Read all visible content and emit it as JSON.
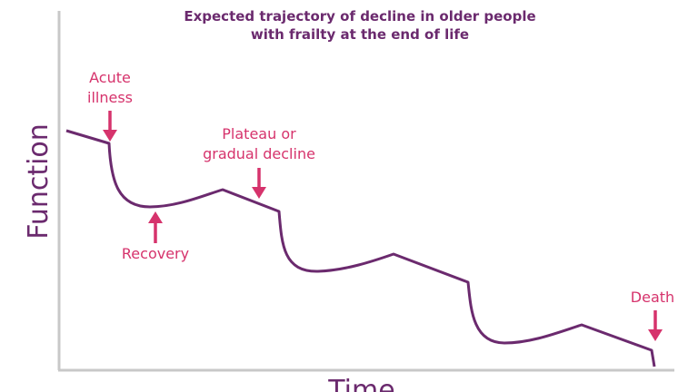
{
  "title": [
    "Expected trajectory of decline in older people",
    "with frailty at the end of life"
  ],
  "axes": {
    "y_label": "Function",
    "x_label": "Time"
  },
  "annotations": {
    "acute_illness": [
      "Acute",
      "illness"
    ],
    "recovery": "Recovery",
    "plateau": [
      "Plateau or",
      "gradual decline"
    ],
    "death": "Death"
  }
}
